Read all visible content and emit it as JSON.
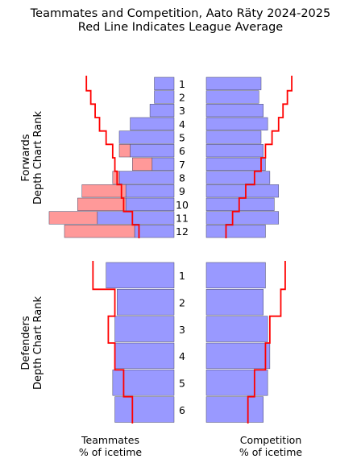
{
  "chart_data": {
    "type": "bar",
    "title": "Teammates and Competition, Aato Räty 2024-2025",
    "subtitle": "Red Line Indicates League Average",
    "left_panel_label": "Teammates\n% of icetime",
    "right_panel_label": "Competition\n% of icetime",
    "colors": {
      "blue": "#9999ff",
      "pink": "#ff9999",
      "line": "#ff0000",
      "edge": "#444466"
    },
    "groups": [
      {
        "name": "forwards",
        "ylabel": "Forwards\nDepth Chart Rank",
        "categories": [
          "1",
          "2",
          "3",
          "4",
          "5",
          "6",
          "7",
          "8",
          "9",
          "10",
          "11",
          "12"
        ],
        "teammates": [
          0.09,
          0.09,
          0.11,
          0.2,
          0.25,
          0.2,
          0.1,
          0.25,
          0.22,
          0.22,
          0.35,
          0.18
        ],
        "teammates_extra": [
          0.0,
          0.0,
          0.0,
          0.0,
          0.0,
          0.05,
          0.09,
          0.03,
          0.2,
          0.22,
          0.22,
          0.32
        ],
        "teammates_avg": [
          0.4,
          0.38,
          0.36,
          0.34,
          0.31,
          0.28,
          0.27,
          0.26,
          0.24,
          0.23,
          0.19,
          0.16
        ],
        "competition": [
          0.25,
          0.24,
          0.26,
          0.28,
          0.25,
          0.26,
          0.27,
          0.29,
          0.33,
          0.31,
          0.33,
          0.27
        ],
        "competition_avg": [
          0.39,
          0.37,
          0.35,
          0.33,
          0.3,
          0.27,
          0.25,
          0.22,
          0.18,
          0.15,
          0.12,
          0.09
        ]
      },
      {
        "name": "defenders",
        "ylabel": "Defenders\nDepth Chart Rank",
        "categories": [
          "1",
          "2",
          "3",
          "4",
          "5",
          "6"
        ],
        "teammates": [
          0.31,
          0.26,
          0.27,
          0.27,
          0.28,
          0.27
        ],
        "teammates_extra": [
          0.0,
          0.0,
          0.0,
          0.0,
          0.0,
          0.0
        ],
        "teammates_avg": [
          0.37,
          0.27,
          0.3,
          0.27,
          0.23,
          0.19
        ],
        "competition": [
          0.27,
          0.26,
          0.28,
          0.29,
          0.28,
          0.26
        ],
        "competition_avg": [
          0.36,
          0.34,
          0.29,
          0.27,
          0.22,
          0.19
        ]
      }
    ]
  }
}
